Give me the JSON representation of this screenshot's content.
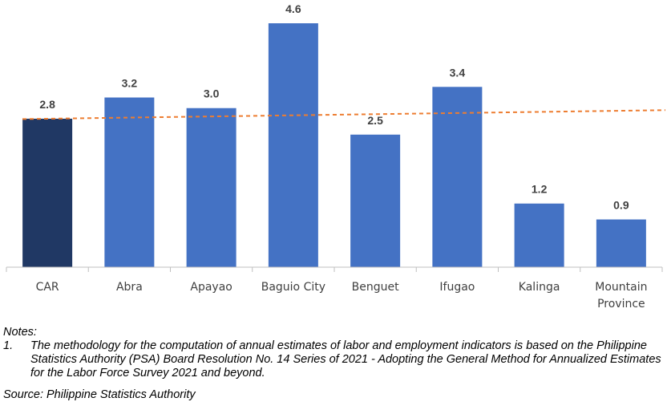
{
  "chart_data": {
    "type": "bar",
    "categories": [
      "CAR",
      "Abra",
      "Apayao",
      "Baguio City",
      "Benguet",
      "Ifugao",
      "Kalinga",
      "Mountain Province"
    ],
    "values": [
      2.8,
      3.2,
      3.0,
      4.6,
      2.5,
      3.4,
      1.2,
      0.9
    ],
    "data_labels": [
      "2.8",
      "3.2",
      "3.0",
      "4.6",
      "2.5",
      "3.4",
      "1.2",
      "0.9"
    ],
    "highlight_category": "CAR",
    "trendline": {
      "type": "linear",
      "style": "dashed",
      "start": 2.8,
      "end": 2.95
    },
    "colors": {
      "highlight": "#203864",
      "bar": "#4472C4",
      "trendline": "#ED7D31",
      "axis": "#BFBFBF"
    },
    "title": "",
    "xlabel": "",
    "ylabel": "",
    "ylim": [
      0,
      4.6
    ],
    "grid": false,
    "legend": "none"
  },
  "notes": {
    "heading": "Notes:",
    "items": [
      {
        "num": "1.",
        "text": "The methodology for the computation of annual estimates of labor and employment indicators is based on the Philippine Statistics Authority (PSA) Board Resolution No. 14 Series of 2021 - Adopting the General Method for Annualized Estimates for the Labor Force Survey 2021 and beyond."
      }
    ]
  },
  "source": "Source: Philippine Statistics Authority"
}
